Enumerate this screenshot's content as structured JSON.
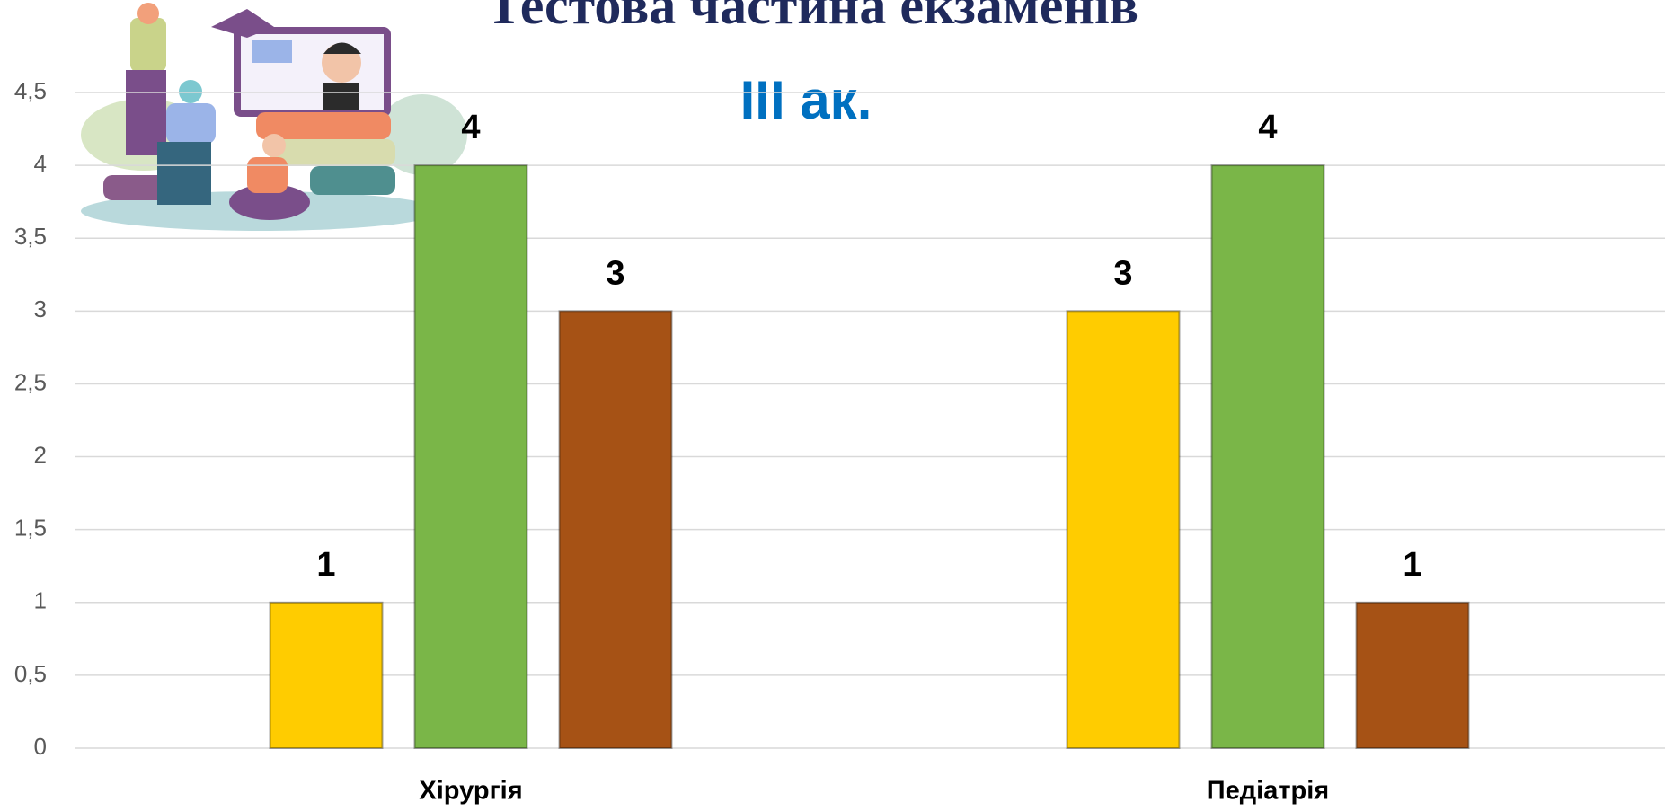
{
  "chart_data": {
    "type": "bar",
    "title": "Тестова частина екзаменів",
    "subtitle": "III ак.",
    "categories": [
      "Хірургія",
      "Педіатрія"
    ],
    "series": [
      {
        "color": "#ffcc00",
        "values": [
          1,
          3
        ]
      },
      {
        "color": "#7ab648",
        "values": [
          4,
          4
        ]
      },
      {
        "color": "#a65215",
        "values": [
          3,
          1
        ]
      }
    ],
    "ylim": [
      0,
      4.5
    ],
    "yticks": [
      0,
      {
        "value": 0.5,
        "label": "0,5"
      },
      1,
      {
        "value": 1.5,
        "label": "1,5"
      },
      2,
      {
        "value": 2.5,
        "label": "2,5"
      },
      3,
      {
        "value": 3.5,
        "label": "3,5"
      },
      4,
      {
        "value": 4.5,
        "label": "4,5"
      }
    ],
    "grid": true
  }
}
